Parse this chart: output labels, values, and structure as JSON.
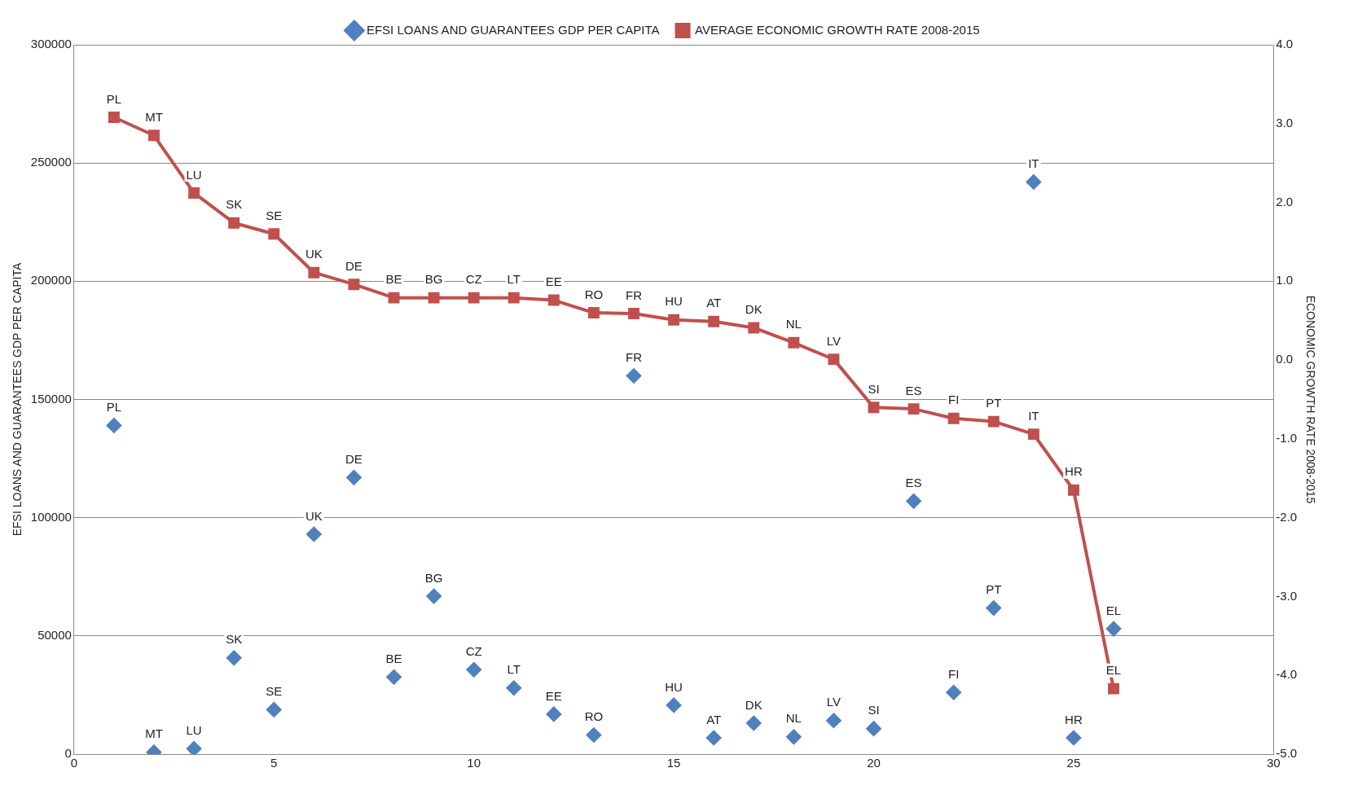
{
  "chart_data": {
    "type": "scatter",
    "ylabel": "EFSI LOANS AND GUARANTEES GDP PER CAPITA",
    "y2label": "ECONOMIC GROWTH RATE 2008-2015",
    "legend": "top",
    "grid": "y",
    "x": [
      1,
      2,
      3,
      4,
      5,
      6,
      7,
      8,
      9,
      10,
      11,
      12,
      13,
      14,
      15,
      16,
      17,
      18,
      19,
      20,
      21,
      22,
      23,
      24,
      25,
      26
    ],
    "xlim": [
      0,
      30
    ],
    "xticks": [
      0,
      5,
      10,
      15,
      20,
      25,
      30
    ],
    "ylim": [
      0,
      300000
    ],
    "yticks": [
      0,
      50000,
      100000,
      150000,
      200000,
      250000,
      300000
    ],
    "y2lim": [
      -5,
      4
    ],
    "y2ticks": [
      {
        "value": -5,
        "label": "-5.0"
      },
      {
        "value": -4,
        "label": "-4.0"
      },
      {
        "value": -3,
        "label": "-3.0"
      },
      {
        "value": -2,
        "label": "-2.0"
      },
      {
        "value": -1,
        "label": "-1.0"
      },
      {
        "value": 0,
        "label": "0.0"
      },
      {
        "value": 1,
        "label": "1.0"
      },
      {
        "value": 2,
        "label": "2.0"
      },
      {
        "value": 3,
        "label": "3.0"
      },
      {
        "value": 4,
        "label": "4.0"
      }
    ],
    "series": [
      {
        "name": "EFSI LOANS AND GUARANTEES GDP PER CAPITA",
        "type": "scatter",
        "color": "#4f81bd",
        "marker": "diamond",
        "values": [
          139000,
          800,
          2300,
          40700,
          18800,
          93000,
          117000,
          32600,
          66800,
          35700,
          28000,
          16900,
          8100,
          160000,
          20700,
          6900,
          13100,
          7300,
          14200,
          10800,
          107000,
          26100,
          61800,
          242000,
          6900,
          53000
        ],
        "value_labels": [
          "PL",
          "MT",
          "LU",
          "SK",
          "SE",
          "UK",
          "DE",
          "BE",
          "BG",
          "CZ",
          "LT",
          "EE",
          "RO",
          "FR",
          "HU",
          "AT",
          "DK",
          "NL",
          "LV",
          "SI",
          "ES",
          "FI",
          "PT",
          "IT",
          "HR",
          "EL"
        ]
      },
      {
        "name": "AVERAGE ECONOMIC GROWTH RATE 2008-2015",
        "type": "line",
        "axis": "y2",
        "color": "#c0504d",
        "marker": "square",
        "values": [
          3.08,
          2.85,
          2.12,
          1.74,
          1.6,
          1.11,
          0.96,
          0.79,
          0.79,
          0.79,
          0.79,
          0.76,
          0.6,
          0.59,
          0.51,
          0.49,
          0.41,
          0.22,
          0.01,
          -0.6,
          -0.62,
          -0.74,
          -0.78,
          -0.94,
          -1.65,
          -4.17
        ],
        "value_labels": [
          "PL",
          "MT",
          "LU",
          "SK",
          "SE",
          "UK",
          "DE",
          "BE",
          "BG",
          "CZ",
          "LT",
          "EE",
          "RO",
          "FR",
          "HU",
          "AT",
          "DK",
          "NL",
          "LV",
          "SI",
          "ES",
          "FI",
          "PT",
          "IT",
          "HR",
          "EL"
        ]
      }
    ]
  }
}
